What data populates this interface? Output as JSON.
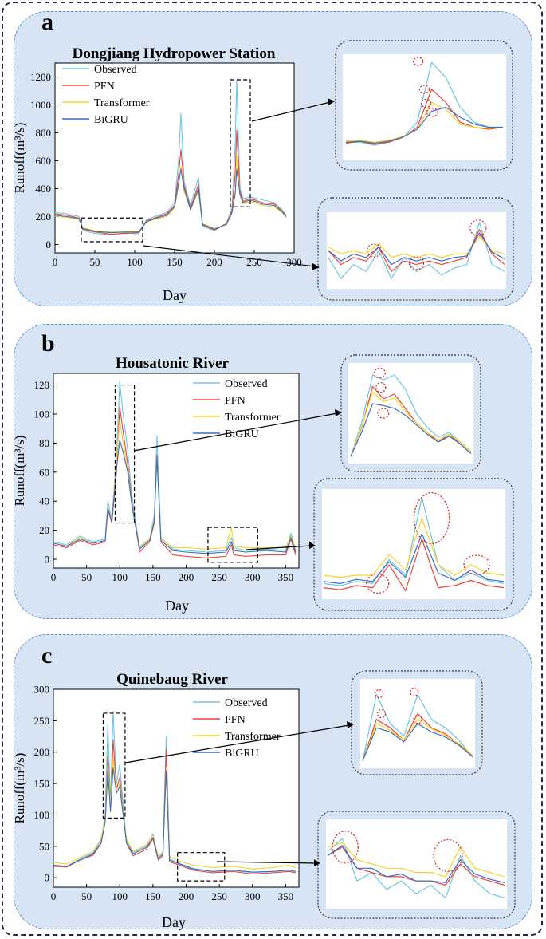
{
  "figure": {
    "colors": {
      "observed": "#6ec6e6",
      "pfn": "#e8463a",
      "transformer": "#f5d327",
      "bigru": "#3a6fc4",
      "panel_bg": "#d6e4f4",
      "panel_border": "#5b8fc8",
      "highlight": "#e02020"
    },
    "legend": [
      "Observed",
      "PFN",
      "Transformer",
      "BiGRU"
    ]
  },
  "chart_data": [
    {
      "panel_label": "a",
      "type": "line",
      "title": "Dongjiang Hydropower Station",
      "xlabel": "Day",
      "ylabel": "Runoff(m³/s)",
      "xlim": [
        0,
        300
      ],
      "ylim": [
        -60,
        1300
      ],
      "xticks": [
        "0",
        "50",
        "100",
        "150",
        "200",
        "250",
        "300"
      ],
      "yticks": [
        "0",
        "200",
        "400",
        "600",
        "800",
        "1000",
        "1200"
      ],
      "xtick_values": [
        0,
        50,
        100,
        150,
        200,
        250,
        300
      ],
      "ytick_values": [
        0,
        200,
        400,
        600,
        800,
        1000,
        1200
      ],
      "legend": [
        "Observed",
        "PFN",
        "Transformer",
        "BiGRU"
      ],
      "x": [
        0,
        15,
        30,
        35,
        50,
        70,
        90,
        105,
        115,
        125,
        140,
        150,
        155,
        158,
        162,
        170,
        180,
        185,
        200,
        215,
        222,
        226,
        228,
        232,
        236,
        245,
        260,
        275,
        285,
        290
      ],
      "series": [
        {
          "name": "Observed",
          "values": [
            230,
            220,
            200,
            100,
            80,
            70,
            85,
            75,
            180,
            200,
            230,
            300,
            600,
            940,
            450,
            280,
            480,
            130,
            100,
            150,
            260,
            700,
            1180,
            400,
            330,
            340,
            320,
            300,
            250,
            210
          ]
        },
        {
          "name": "PFN",
          "values": [
            220,
            210,
            190,
            110,
            90,
            75,
            80,
            85,
            170,
            190,
            220,
            280,
            500,
            680,
            420,
            260,
            430,
            140,
            105,
            150,
            240,
            500,
            820,
            380,
            310,
            330,
            300,
            290,
            240,
            200
          ]
        },
        {
          "name": "Transformer",
          "values": [
            200,
            195,
            180,
            120,
            100,
            90,
            95,
            95,
            160,
            180,
            200,
            260,
            420,
            560,
            380,
            250,
            380,
            150,
            115,
            140,
            220,
            380,
            640,
            350,
            290,
            310,
            280,
            270,
            230,
            190
          ]
        },
        {
          "name": "BiGRU",
          "values": [
            210,
            200,
            185,
            115,
            95,
            85,
            90,
            90,
            165,
            185,
            210,
            270,
            440,
            540,
            400,
            250,
            400,
            145,
            110,
            145,
            230,
            360,
            540,
            360,
            300,
            320,
            290,
            280,
            235,
            200
          ]
        }
      ],
      "zoom_boxes": [
        {
          "x": [
            33,
            110
          ],
          "y": [
            20,
            190
          ]
        },
        {
          "x": [
            220,
            245
          ],
          "y": [
            270,
            1180
          ]
        }
      ]
    },
    {
      "panel_label": "b",
      "type": "line",
      "title": "Housatonic River",
      "xlabel": "Day",
      "ylabel": "Runoff(m³/s)",
      "xlim": [
        0,
        370
      ],
      "ylim": [
        -6,
        128
      ],
      "xticks": [
        "0",
        "50",
        "100",
        "150",
        "200",
        "250",
        "300",
        "350"
      ],
      "yticks": [
        "0",
        "20",
        "40",
        "60",
        "80",
        "100",
        "120"
      ],
      "xtick_values": [
        0,
        50,
        100,
        150,
        200,
        250,
        300,
        350
      ],
      "ytick_values": [
        0,
        20,
        40,
        60,
        80,
        100,
        120
      ],
      "legend": [
        "Observed",
        "PFN",
        "Transformer",
        "BiGRU"
      ],
      "x": [
        0,
        20,
        40,
        60,
        78,
        82,
        88,
        95,
        100,
        105,
        112,
        118,
        130,
        145,
        152,
        156,
        162,
        180,
        200,
        230,
        260,
        268,
        272,
        290,
        320,
        350,
        358,
        365
      ],
      "series": [
        {
          "name": "Observed",
          "values": [
            12,
            10,
            16,
            12,
            14,
            40,
            28,
            70,
            122,
            100,
            75,
            45,
            8,
            14,
            30,
            85,
            15,
            7,
            6,
            5,
            6,
            15,
            8,
            6,
            7,
            6,
            18,
            6
          ]
        },
        {
          "name": "PFN",
          "values": [
            10,
            8,
            13,
            10,
            12,
            34,
            25,
            60,
            105,
            88,
            66,
            40,
            5,
            12,
            25,
            72,
            12,
            3,
            2,
            1,
            2,
            10,
            3,
            2,
            3,
            3,
            14,
            3
          ]
        },
        {
          "name": "Transformer",
          "values": [
            11,
            9,
            15,
            11,
            13,
            36,
            27,
            68,
            96,
            80,
            62,
            38,
            9,
            14,
            27,
            70,
            14,
            8,
            8,
            7,
            8,
            22,
            9,
            8,
            8,
            8,
            16,
            8
          ]
        },
        {
          "name": "BiGRU",
          "values": [
            11,
            9,
            14,
            11,
            13,
            35,
            26,
            62,
            82,
            74,
            60,
            38,
            7,
            13,
            26,
            70,
            13,
            6,
            5,
            4,
            5,
            12,
            6,
            5,
            6,
            5,
            15,
            5
          ]
        }
      ],
      "zoom_boxes": [
        {
          "x": [
            93,
            122
          ],
          "y": [
            25,
            120
          ]
        },
        {
          "x": [
            233,
            308
          ],
          "y": [
            -2,
            22
          ]
        }
      ]
    },
    {
      "panel_label": "c",
      "type": "line",
      "title": "Quinebaug River",
      "xlabel": "Day",
      "ylabel": "Runoff(m³/s)",
      "xlim": [
        0,
        370
      ],
      "ylim": [
        -15,
        300
      ],
      "xticks": [
        "0",
        "50",
        "100",
        "150",
        "200",
        "250",
        "300",
        "350"
      ],
      "yticks": [
        "0",
        "50",
        "100",
        "150",
        "200",
        "250",
        "300"
      ],
      "xtick_values": [
        0,
        50,
        100,
        150,
        200,
        250,
        300,
        350
      ],
      "ytick_values": [
        0,
        50,
        100,
        150,
        200,
        250,
        300
      ],
      "legend": [
        "Observed",
        "PFN",
        "Transformer",
        "BiGRU"
      ],
      "x": [
        0,
        20,
        40,
        60,
        72,
        78,
        82,
        86,
        90,
        95,
        100,
        110,
        120,
        140,
        150,
        158,
        165,
        170,
        175,
        185,
        210,
        240,
        270,
        300,
        330,
        355,
        365
      ],
      "series": [
        {
          "name": "Observed",
          "values": [
            20,
            18,
            30,
            40,
            60,
            100,
            245,
            120,
            265,
            150,
            180,
            60,
            40,
            50,
            70,
            30,
            40,
            225,
            30,
            25,
            15,
            10,
            12,
            8,
            10,
            12,
            10
          ]
        },
        {
          "name": "PFN",
          "values": [
            18,
            17,
            28,
            36,
            55,
            90,
            195,
            110,
            220,
            140,
            160,
            55,
            35,
            45,
            62,
            28,
            35,
            205,
            25,
            22,
            12,
            8,
            10,
            6,
            8,
            10,
            8
          ]
        },
        {
          "name": "Transformer",
          "values": [
            24,
            22,
            32,
            42,
            62,
            95,
            180,
            115,
            190,
            140,
            150,
            62,
            42,
            52,
            68,
            34,
            42,
            175,
            34,
            28,
            20,
            16,
            18,
            14,
            16,
            20,
            16
          ]
        },
        {
          "name": "BiGRU",
          "values": [
            20,
            18,
            28,
            38,
            56,
            88,
            170,
            105,
            175,
            135,
            145,
            56,
            38,
            48,
            64,
            30,
            38,
            170,
            28,
            24,
            14,
            10,
            12,
            9,
            10,
            12,
            10
          ]
        }
      ],
      "zoom_boxes": [
        {
          "x": [
            75,
            108
          ],
          "y": [
            95,
            262
          ]
        },
        {
          "x": [
            187,
            258
          ],
          "y": [
            -5,
            40
          ]
        }
      ]
    }
  ]
}
